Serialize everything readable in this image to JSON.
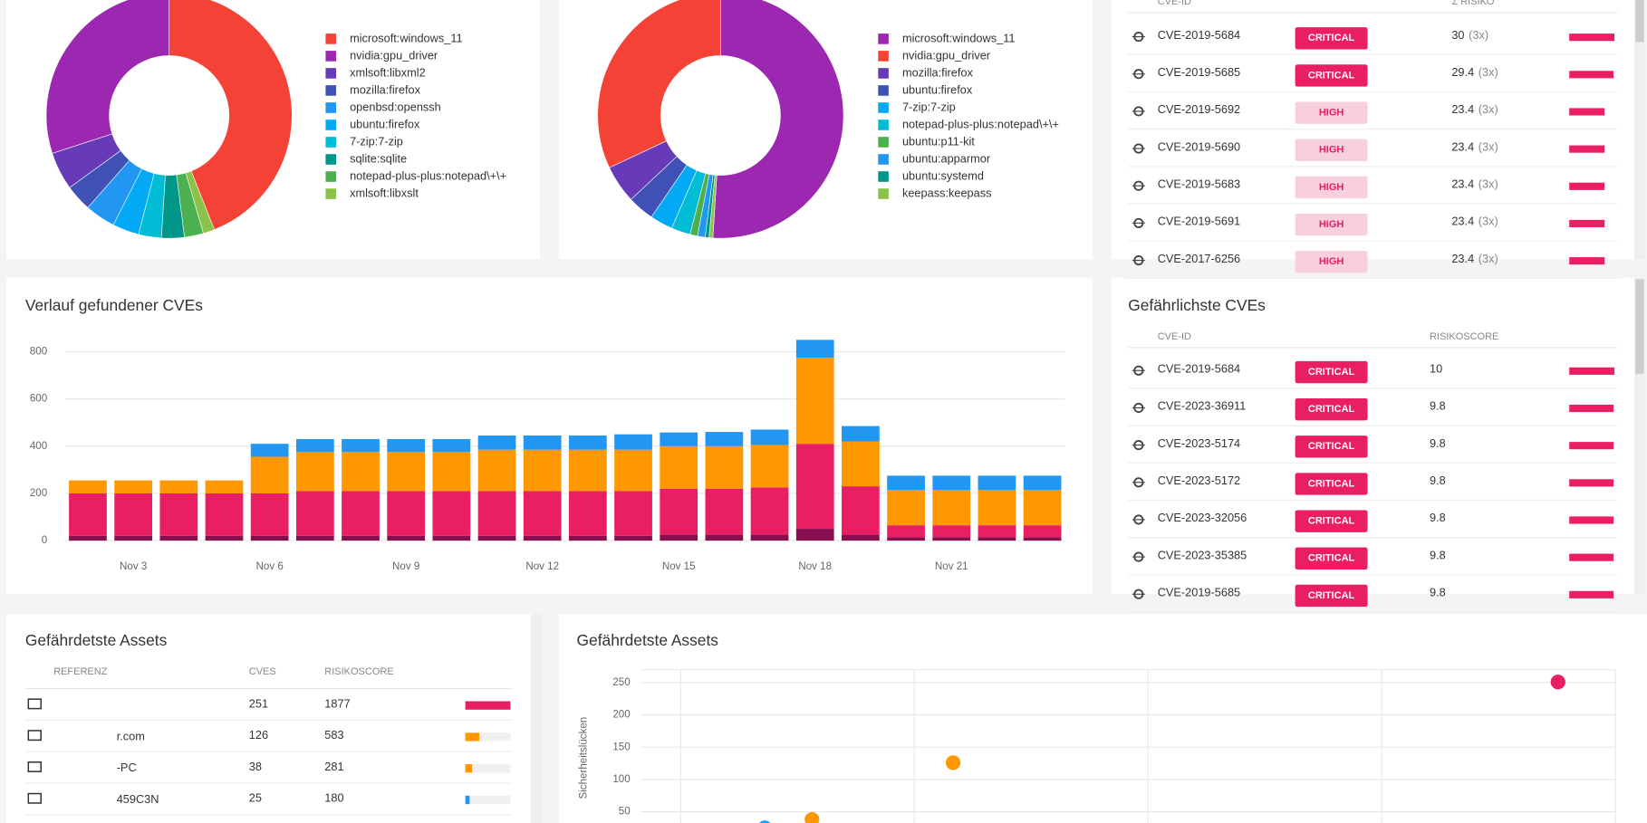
{
  "chart_data": [
    {
      "type": "pie",
      "categories": [
        "microsoft:windows_11",
        "nvidia:gpu_driver",
        "xmlsoft:libxml2",
        "mozilla:firefox",
        "openbsd:openssh",
        "ubuntu:firefox",
        "7-zip:7-zip",
        "sqlite:sqlite",
        "notepad-plus-plus:notepad\\+\\+",
        "xmlsoft:libxslt"
      ],
      "values": [
        44,
        30,
        5,
        3.5,
        4,
        3.5,
        3,
        3,
        2.5,
        1.5
      ],
      "colors": [
        "#f44336",
        "#9c27b0",
        "#673ab7",
        "#3f51b5",
        "#2196f3",
        "#03a9f4",
        "#00bcd4",
        "#009688",
        "#4caf50",
        "#8bc34a"
      ]
    },
    {
      "type": "pie",
      "categories": [
        "microsoft:windows_11",
        "nvidia:gpu_driver",
        "mozilla:firefox",
        "ubuntu:firefox",
        "7-zip:7-zip",
        "notepad-plus-plus:notepad\\+\\+",
        "ubuntu:p11-kit",
        "ubuntu:apparmor",
        "ubuntu:systemd",
        "keepass:keepass"
      ],
      "values": [
        51,
        32,
        5,
        3.5,
        3,
        2.5,
        1,
        1,
        0.5,
        0.5
      ],
      "colors": [
        "#9c27b0",
        "#f44336",
        "#673ab7",
        "#3f51b5",
        "#03a9f4",
        "#00bcd4",
        "#4caf50",
        "#2196f3",
        "#009688",
        "#8bc34a"
      ]
    },
    {
      "type": "bar",
      "stacked": true,
      "title": "Verlauf gefundener CVEs",
      "categories": [
        null,
        "Nov 3",
        null,
        null,
        "Nov 6",
        null,
        null,
        "Nov 9",
        null,
        null,
        "Nov 12",
        null,
        null,
        "Nov 15",
        null,
        null,
        "Nov 18",
        null,
        null,
        "Nov 21",
        null,
        null
      ],
      "series": [
        {
          "color": "#880e4f",
          "values": [
            20,
            20,
            20,
            20,
            20,
            20,
            20,
            20,
            20,
            20,
            20,
            20,
            20,
            25,
            25,
            25,
            50,
            25,
            15,
            15,
            15,
            15
          ]
        },
        {
          "color": "#e91e63",
          "values": [
            180,
            180,
            180,
            180,
            180,
            190,
            190,
            190,
            190,
            190,
            190,
            190,
            190,
            195,
            195,
            200,
            360,
            205,
            50,
            50,
            50,
            50
          ]
        },
        {
          "color": "#ff9800",
          "values": [
            55,
            55,
            55,
            55,
            155,
            165,
            165,
            165,
            165,
            175,
            175,
            175,
            175,
            180,
            180,
            180,
            365,
            190,
            150,
            150,
            150,
            150
          ]
        },
        {
          "color": "#2196f3",
          "values": [
            0,
            0,
            0,
            0,
            55,
            55,
            55,
            55,
            55,
            60,
            60,
            60,
            65,
            58,
            60,
            65,
            75,
            65,
            60,
            60,
            60,
            60
          ]
        }
      ],
      "ylim": [
        0,
        880
      ],
      "yticks": [
        0,
        200,
        400,
        600,
        800
      ],
      "grid": true
    },
    {
      "type": "scatter",
      "title": "Gefährdetste Assets",
      "y_label": "Sicherheitslücken",
      "x": [
        1877,
        583,
        281,
        180
      ],
      "values": [
        251,
        126,
        38,
        25
      ],
      "colors": [
        "#e91e63",
        "#ff9800",
        "#ff9800",
        "#2196f3"
      ],
      "xlim": [
        0,
        2000
      ],
      "xticks": [
        0,
        500,
        1000,
        1500,
        2000
      ],
      "ylim": [
        0,
        270
      ],
      "yticks": [
        50,
        100,
        150,
        200,
        250
      ],
      "grid": true
    }
  ],
  "tables": {
    "badge_styles": {
      "CRITICAL": {
        "fill": "#e91e63",
        "text": "#ffffff"
      },
      "HIGH": {
        "fill": "#f8d0dd",
        "text": "#e91e63"
      }
    },
    "risk_sum": {
      "columns": [
        "CVE-ID",
        "Σ RISIKO"
      ],
      "bar_color": "#e91e63",
      "rows": [
        {
          "id": "CVE-2019-5684",
          "severity": "CRITICAL",
          "risk": 30,
          "count": "(3x)"
        },
        {
          "id": "CVE-2019-5685",
          "severity": "CRITICAL",
          "risk": 29.4,
          "count": "(3x)"
        },
        {
          "id": "CVE-2019-5692",
          "severity": "HIGH",
          "risk": 23.4,
          "count": "(3x)"
        },
        {
          "id": "CVE-2019-5690",
          "severity": "HIGH",
          "risk": 23.4,
          "count": "(3x)"
        },
        {
          "id": "CVE-2019-5683",
          "severity": "HIGH",
          "risk": 23.4,
          "count": "(3x)"
        },
        {
          "id": "CVE-2019-5691",
          "severity": "HIGH",
          "risk": 23.4,
          "count": "(3x)"
        },
        {
          "id": "CVE-2017-6256",
          "severity": "HIGH",
          "risk": 23.4,
          "count": "(3x)"
        }
      ]
    },
    "top_cves": {
      "title": "Gefährlichste CVEs",
      "columns": [
        "CVE-ID",
        "RISIKOSCORE"
      ],
      "bar_color": "#e91e63",
      "rows": [
        {
          "id": "CVE-2019-5684",
          "severity": "CRITICAL",
          "score": 10
        },
        {
          "id": "CVE-2023-36911",
          "severity": "CRITICAL",
          "score": 9.8
        },
        {
          "id": "CVE-2023-5174",
          "severity": "CRITICAL",
          "score": 9.8
        },
        {
          "id": "CVE-2023-5172",
          "severity": "CRITICAL",
          "score": 9.8
        },
        {
          "id": "CVE-2023-32056",
          "severity": "CRITICAL",
          "score": 9.8
        },
        {
          "id": "CVE-2023-35385",
          "severity": "CRITICAL",
          "score": 9.8
        },
        {
          "id": "CVE-2019-5685",
          "severity": "CRITICAL",
          "score": 9.8
        }
      ]
    },
    "assets": {
      "title": "Gefährdetste Assets",
      "columns": [
        "REFERENZ",
        "CVES",
        "RISIKOSCORE"
      ],
      "rows": [
        {
          "cves": 251,
          "score": 1877,
          "color": "#e91e63"
        },
        {
          "reference": "r.com",
          "cves": 126,
          "score": 583,
          "color": "#ff9800"
        },
        {
          "reference": "-PC",
          "cves": 38,
          "score": 281,
          "color": "#ff9800"
        },
        {
          "reference": "459C3N",
          "cves": 25,
          "score": 180,
          "color": "#2196f3"
        }
      ]
    }
  }
}
